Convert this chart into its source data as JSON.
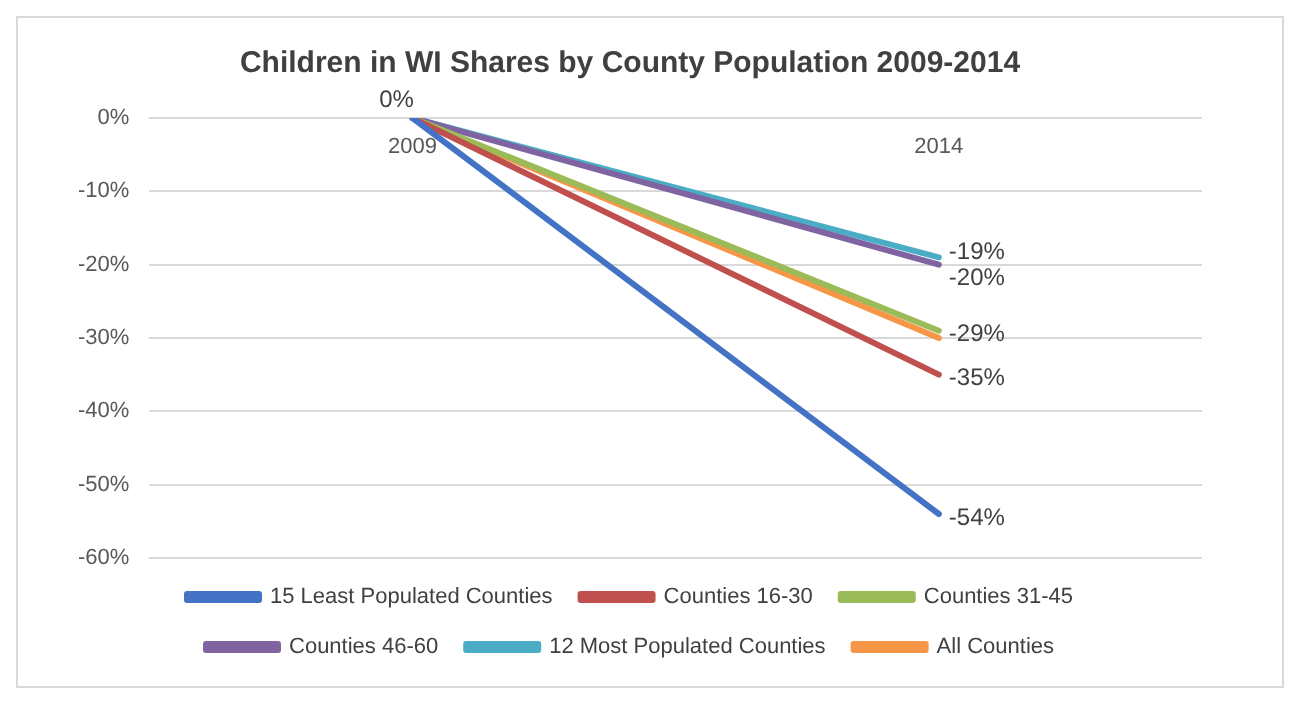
{
  "chart_data": {
    "type": "line",
    "title": "Children in WI Shares by County Population 2009-2014",
    "categories": [
      "2009",
      "2014"
    ],
    "series": [
      {
        "name": "15 Least Populated Counties",
        "color": "#4472c4",
        "values": [
          0,
          -54
        ],
        "value_labels": [
          null,
          "-54%"
        ]
      },
      {
        "name": "Counties 16-30",
        "color": "#c0504d",
        "values": [
          0,
          -35
        ],
        "value_labels": [
          null,
          "-35%"
        ]
      },
      {
        "name": "Counties 31-45",
        "color": "#9bbb59",
        "values": [
          0,
          -29
        ],
        "value_labels": [
          null,
          "-29%"
        ]
      },
      {
        "name": "Counties 46-60",
        "color": "#8064a2",
        "values": [
          0,
          -20
        ],
        "value_labels": [
          null,
          "-20%"
        ]
      },
      {
        "name": "12 Most Populated Counties",
        "color": "#4bacc6",
        "values": [
          0,
          -19
        ],
        "value_labels": [
          "0%",
          "-19%"
        ]
      },
      {
        "name": "All Counties",
        "color": "#f79646",
        "values": [
          0,
          -30
        ],
        "value_labels": [
          null,
          null
        ]
      }
    ],
    "ylim": [
      -60,
      0
    ],
    "yticks": [
      {
        "value": -60,
        "label": "-60%"
      },
      {
        "value": -50,
        "label": "-50%"
      },
      {
        "value": -40,
        "label": "-40%"
      },
      {
        "value": -30,
        "label": "-30%"
      },
      {
        "value": -20,
        "label": "-20%"
      },
      {
        "value": -10,
        "label": "-10%"
      },
      {
        "value": 0,
        "label": "0%"
      }
    ],
    "grid": "y",
    "legend": "bottom",
    "marker": "none",
    "line_style": "solid"
  }
}
